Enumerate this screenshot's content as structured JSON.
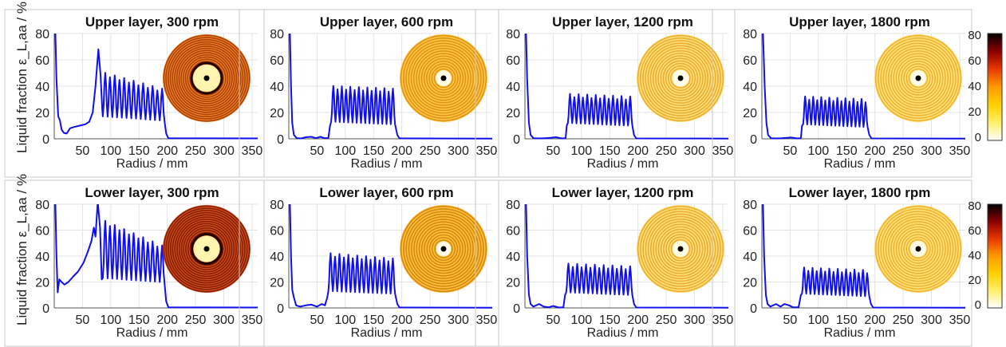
{
  "figure": {
    "ylabel": "Liquid fraction ε_L,aa / %",
    "xlabel": "Radius / mm"
  },
  "colorbar": {
    "ticks": [
      0,
      20,
      40,
      60,
      80
    ],
    "colormap": [
      "#ffffff",
      "#ffef6a",
      "#ffd000",
      "#ff9a00",
      "#e83800",
      "#8a0000",
      "#000000"
    ]
  },
  "chart_data": [
    {
      "type": "line",
      "title": "Upper layer, 300 rpm",
      "xlabel": "Radius / mm",
      "ylabel": "Liquid fraction ε_L,aa / %",
      "xlim": [
        0,
        360
      ],
      "ylim": [
        0,
        80
      ],
      "xticks": [
        50,
        100,
        150,
        200,
        250,
        300,
        350
      ],
      "yticks": [
        0,
        20,
        40,
        60,
        80
      ],
      "line_color": "#1010ee",
      "profile": {
        "wall": [
          [
            2,
            80
          ],
          [
            4,
            45
          ],
          [
            7,
            17
          ],
          [
            10,
            14
          ],
          [
            13,
            7
          ],
          [
            17,
            4.5
          ],
          [
            22,
            4
          ],
          [
            28,
            8
          ],
          [
            35,
            9
          ],
          [
            45,
            10
          ],
          [
            55,
            11
          ],
          [
            62,
            13
          ],
          [
            68,
            20
          ],
          [
            73,
            40
          ],
          [
            78,
            68
          ],
          [
            82,
            48
          ],
          [
            85,
            22
          ]
        ],
        "osc_start": 86,
        "osc_end": 195,
        "n_peaks": 13,
        "peak_high": 49,
        "peak_low": 37,
        "valley_high": 17,
        "valley_low": 14,
        "tail": [
          [
            198,
            4
          ],
          [
            202,
            0.4
          ],
          [
            360,
            0.3
          ]
        ]
      }
    },
    {
      "type": "line",
      "title": "Upper layer, 600 rpm",
      "xlabel": "Radius / mm",
      "xlim": [
        0,
        360
      ],
      "ylim": [
        0,
        80
      ],
      "xticks": [
        50,
        100,
        150,
        200,
        250,
        300,
        350
      ],
      "yticks": [
        0,
        20,
        40,
        60,
        80
      ],
      "line_color": "#1010ee",
      "profile": {
        "wall": [
          [
            2,
            80
          ],
          [
            4,
            40
          ],
          [
            6,
            12
          ],
          [
            9,
            3
          ],
          [
            14,
            0.5
          ],
          [
            22,
            0.3
          ],
          [
            30,
            1.2
          ],
          [
            40,
            1.5
          ],
          [
            48,
            0.5
          ],
          [
            56,
            1.5
          ],
          [
            63,
            0.5
          ],
          [
            70,
            0.6
          ],
          [
            73,
            10
          ]
        ],
        "osc_start": 75,
        "osc_end": 188,
        "n_peaks": 15,
        "peak_high": 39,
        "peak_low": 37,
        "valley_high": 13,
        "valley_low": 11,
        "tail": [
          [
            192,
            3
          ],
          [
            196,
            0.3
          ],
          [
            360,
            0.2
          ]
        ]
      }
    },
    {
      "type": "line",
      "title": "Upper layer, 1200 rpm",
      "xlabel": "Radius / mm",
      "xlim": [
        0,
        360
      ],
      "ylim": [
        0,
        80
      ],
      "xticks": [
        50,
        100,
        150,
        200,
        250,
        300,
        350
      ],
      "yticks": [
        0,
        20,
        40,
        60,
        80
      ],
      "line_color": "#1010ee",
      "profile": {
        "wall": [
          [
            2,
            80
          ],
          [
            4,
            45
          ],
          [
            7,
            12
          ],
          [
            10,
            3
          ],
          [
            15,
            0.5
          ],
          [
            25,
            0.3
          ],
          [
            35,
            0.5
          ],
          [
            45,
            0.8
          ],
          [
            55,
            1.2
          ],
          [
            65,
            0.3
          ],
          [
            72,
            0.5
          ],
          [
            74,
            10
          ]
        ],
        "osc_start": 76,
        "osc_end": 190,
        "n_peaks": 15,
        "peak_high": 33,
        "peak_low": 31,
        "valley_high": 12,
        "valley_low": 10,
        "tail": [
          [
            193,
            3
          ],
          [
            197,
            0.3
          ],
          [
            360,
            0.2
          ]
        ]
      }
    },
    {
      "type": "line",
      "title": "Upper layer, 1800 rpm",
      "xlabel": "Radius / mm",
      "xlim": [
        0,
        360
      ],
      "ylim": [
        0,
        80
      ],
      "xticks": [
        50,
        100,
        150,
        200,
        250,
        300,
        350
      ],
      "yticks": [
        0,
        20,
        40,
        60,
        80
      ],
      "line_color": "#1010ee",
      "profile": {
        "wall": [
          [
            2,
            80
          ],
          [
            5,
            40
          ],
          [
            8,
            12
          ],
          [
            11,
            3
          ],
          [
            16,
            0.5
          ],
          [
            25,
            0.3
          ],
          [
            35,
            0.5
          ],
          [
            45,
            0.8
          ],
          [
            52,
            1.0
          ],
          [
            62,
            0.3
          ],
          [
            69,
            0.5
          ],
          [
            71,
            10
          ]
        ],
        "osc_start": 73,
        "osc_end": 187,
        "n_peaks": 16,
        "peak_high": 31,
        "peak_low": 29,
        "valley_high": 11,
        "valley_low": 9,
        "tail": [
          [
            190,
            3
          ],
          [
            194,
            0.3
          ],
          [
            360,
            0.2
          ]
        ]
      }
    },
    {
      "type": "line",
      "title": "Lower layer, 300 rpm",
      "xlabel": "Radius / mm",
      "ylabel": "Liquid fraction ε_L,aa / %",
      "xlim": [
        0,
        360
      ],
      "ylim": [
        0,
        80
      ],
      "xticks": [
        50,
        100,
        150,
        200,
        250,
        300,
        350
      ],
      "yticks": [
        0,
        20,
        40,
        60,
        80
      ],
      "line_color": "#1010ee",
      "profile": {
        "wall": [
          [
            2,
            80
          ],
          [
            4,
            40
          ],
          [
            6,
            12
          ],
          [
            9,
            22
          ],
          [
            13,
            20
          ],
          [
            18,
            18
          ],
          [
            25,
            20
          ],
          [
            33,
            24
          ],
          [
            42,
            28
          ],
          [
            52,
            35
          ],
          [
            60,
            44
          ],
          [
            66,
            52
          ],
          [
            70,
            62
          ],
          [
            73,
            55
          ],
          [
            77,
            82
          ],
          [
            81,
            62
          ],
          [
            84,
            22
          ]
        ],
        "osc_start": 86,
        "osc_end": 195,
        "n_peaks": 13,
        "peak_high": 66,
        "peak_low": 47,
        "valley_high": 23,
        "valley_low": 20,
        "tail": [
          [
            198,
            5
          ],
          [
            202,
            0.5
          ],
          [
            360,
            0.3
          ]
        ]
      }
    },
    {
      "type": "line",
      "title": "Lower layer, 600 rpm",
      "xlabel": "Radius / mm",
      "xlim": [
        0,
        360
      ],
      "ylim": [
        0,
        80
      ],
      "xticks": [
        50,
        100,
        150,
        200,
        250,
        300,
        350
      ],
      "yticks": [
        0,
        20,
        40,
        60,
        80
      ],
      "line_color": "#1010ee",
      "profile": {
        "wall": [
          [
            2,
            80
          ],
          [
            4,
            40
          ],
          [
            6,
            14
          ],
          [
            9,
            8
          ],
          [
            13,
            2
          ],
          [
            20,
            1
          ],
          [
            30,
            2
          ],
          [
            40,
            2.5
          ],
          [
            50,
            1
          ],
          [
            58,
            3
          ],
          [
            64,
            2
          ],
          [
            68,
            8
          ]
        ],
        "osc_start": 70,
        "osc_end": 188,
        "n_peaks": 15,
        "peak_high": 41,
        "peak_low": 37,
        "valley_high": 13,
        "valley_low": 11,
        "tail": [
          [
            192,
            3
          ],
          [
            196,
            0.3
          ],
          [
            360,
            0.2
          ]
        ]
      }
    },
    {
      "type": "line",
      "title": "Lower layer, 1200 rpm",
      "xlabel": "Radius / mm",
      "xlim": [
        0,
        360
      ],
      "ylim": [
        0,
        80
      ],
      "xticks": [
        50,
        100,
        150,
        200,
        250,
        300,
        350
      ],
      "yticks": [
        0,
        20,
        40,
        60,
        80
      ],
      "line_color": "#1010ee",
      "profile": {
        "wall": [
          [
            2,
            80
          ],
          [
            4,
            40
          ],
          [
            7,
            10
          ],
          [
            10,
            3
          ],
          [
            15,
            1
          ],
          [
            25,
            3
          ],
          [
            33,
            1
          ],
          [
            42,
            0.5
          ],
          [
            50,
            1.5
          ],
          [
            60,
            0.3
          ],
          [
            68,
            0.5
          ],
          [
            71,
            10
          ]
        ],
        "osc_start": 73,
        "osc_end": 190,
        "n_peaks": 15,
        "peak_high": 33,
        "peak_low": 31,
        "valley_high": 12,
        "valley_low": 10,
        "tail": [
          [
            193,
            3
          ],
          [
            197,
            0.3
          ],
          [
            360,
            0.2
          ]
        ]
      }
    },
    {
      "type": "line",
      "title": "Lower layer, 1800 rpm",
      "xlabel": "Radius / mm",
      "xlim": [
        0,
        360
      ],
      "ylim": [
        0,
        80
      ],
      "xticks": [
        50,
        100,
        150,
        200,
        250,
        300,
        350
      ],
      "yticks": [
        0,
        20,
        40,
        60,
        80
      ],
      "line_color": "#1010ee",
      "profile": {
        "wall": [
          [
            2,
            80
          ],
          [
            4,
            40
          ],
          [
            7,
            10
          ],
          [
            10,
            3
          ],
          [
            15,
            1
          ],
          [
            25,
            3
          ],
          [
            33,
            1
          ],
          [
            40,
            3
          ],
          [
            48,
            2
          ],
          [
            55,
            0.5
          ],
          [
            65,
            0.5
          ],
          [
            69,
            10
          ]
        ],
        "osc_start": 71,
        "osc_end": 190,
        "n_peaks": 16,
        "peak_high": 30,
        "peak_low": 28,
        "valley_high": 11,
        "valley_low": 9,
        "tail": [
          [
            193,
            3
          ],
          [
            197,
            0.3
          ],
          [
            360,
            0.2
          ]
        ]
      }
    }
  ],
  "tomograms": [
    {
      "bg": "#e88a2a",
      "ring": "#a83000",
      "center": "#fff4b0",
      "center_r": 0.31,
      "dark_ring": true
    },
    {
      "bg": "#fcc844",
      "ring": "#e08a10",
      "center": "#fffbe4",
      "center_r": 0.18,
      "dark_ring": false
    },
    {
      "bg": "#ffe07a",
      "ring": "#eaa524",
      "center": "#fffde8",
      "center_r": 0.19,
      "dark_ring": false
    },
    {
      "bg": "#ffe27a",
      "ring": "#eeaa26",
      "center": "#fffde8",
      "center_r": 0.18,
      "dark_ring": false
    },
    {
      "bg": "#d2521a",
      "ring": "#7a1400",
      "center": "#fff4b0",
      "center_r": 0.3,
      "dark_ring": true
    },
    {
      "bg": "#fbc23c",
      "ring": "#d07c08",
      "center": "#fffbe4",
      "center_r": 0.17,
      "dark_ring": false
    },
    {
      "bg": "#ffe07a",
      "ring": "#eaa524",
      "center": "#fffde8",
      "center_r": 0.18,
      "dark_ring": false
    },
    {
      "bg": "#ffe27a",
      "ring": "#eeaa26",
      "center": "#fffde8",
      "center_r": 0.18,
      "dark_ring": false
    }
  ]
}
